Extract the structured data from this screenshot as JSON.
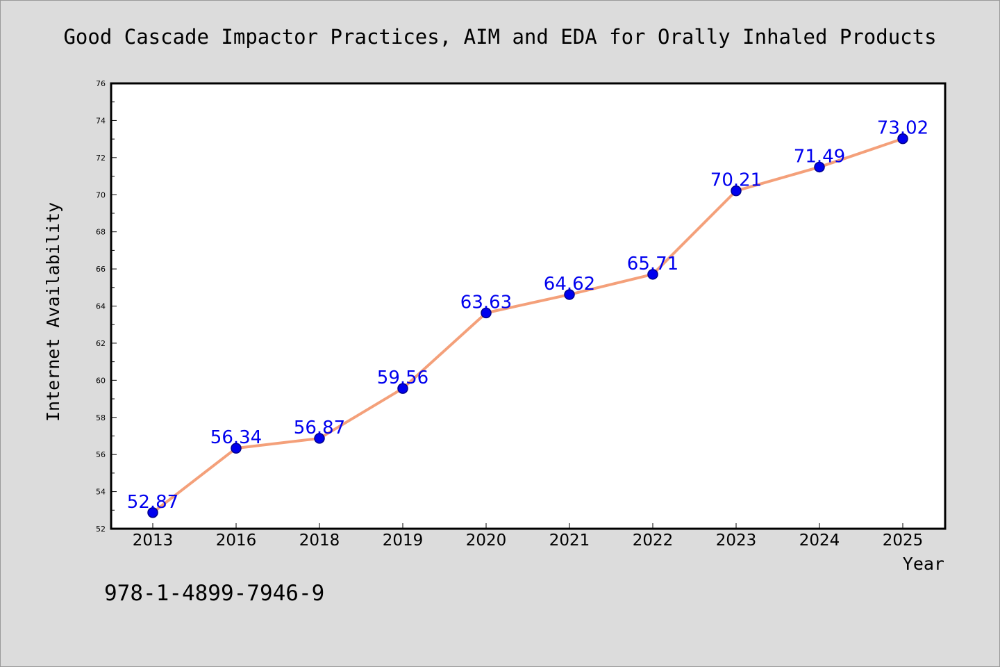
{
  "chart_data": {
    "type": "line",
    "title": "Good Cascade Impactor Practices, AIM and EDA for Orally Inhaled Products",
    "xlabel": "Year",
    "ylabel": "Internet Availability",
    "categories": [
      "2013",
      "2016",
      "2018",
      "2019",
      "2020",
      "2021",
      "2022",
      "2023",
      "2024",
      "2025"
    ],
    "values": [
      52.87,
      56.34,
      56.87,
      59.56,
      63.63,
      64.62,
      65.71,
      70.21,
      71.49,
      73.02
    ],
    "value_labels": [
      "52.87",
      "56.34",
      "56.87",
      "59.56",
      "63.63",
      "64.62",
      "65.71",
      "70.21",
      "71.49",
      "73.02"
    ],
    "ylim": [
      52,
      76
    ],
    "yticks": [
      "52",
      "54",
      "56",
      "58",
      "60",
      "62",
      "64",
      "66",
      "68",
      "70",
      "72",
      "74",
      "76"
    ],
    "grid": false,
    "legend": "none",
    "colors": {
      "line": "#f4a07a",
      "marker": "#0000ee",
      "marker_edge": "#00008b",
      "data_label": "#0000ee",
      "background": "#dcdcdc",
      "plot_background": "#ffffff"
    }
  },
  "footer": {
    "isbn": "978-1-4899-7946-9"
  }
}
